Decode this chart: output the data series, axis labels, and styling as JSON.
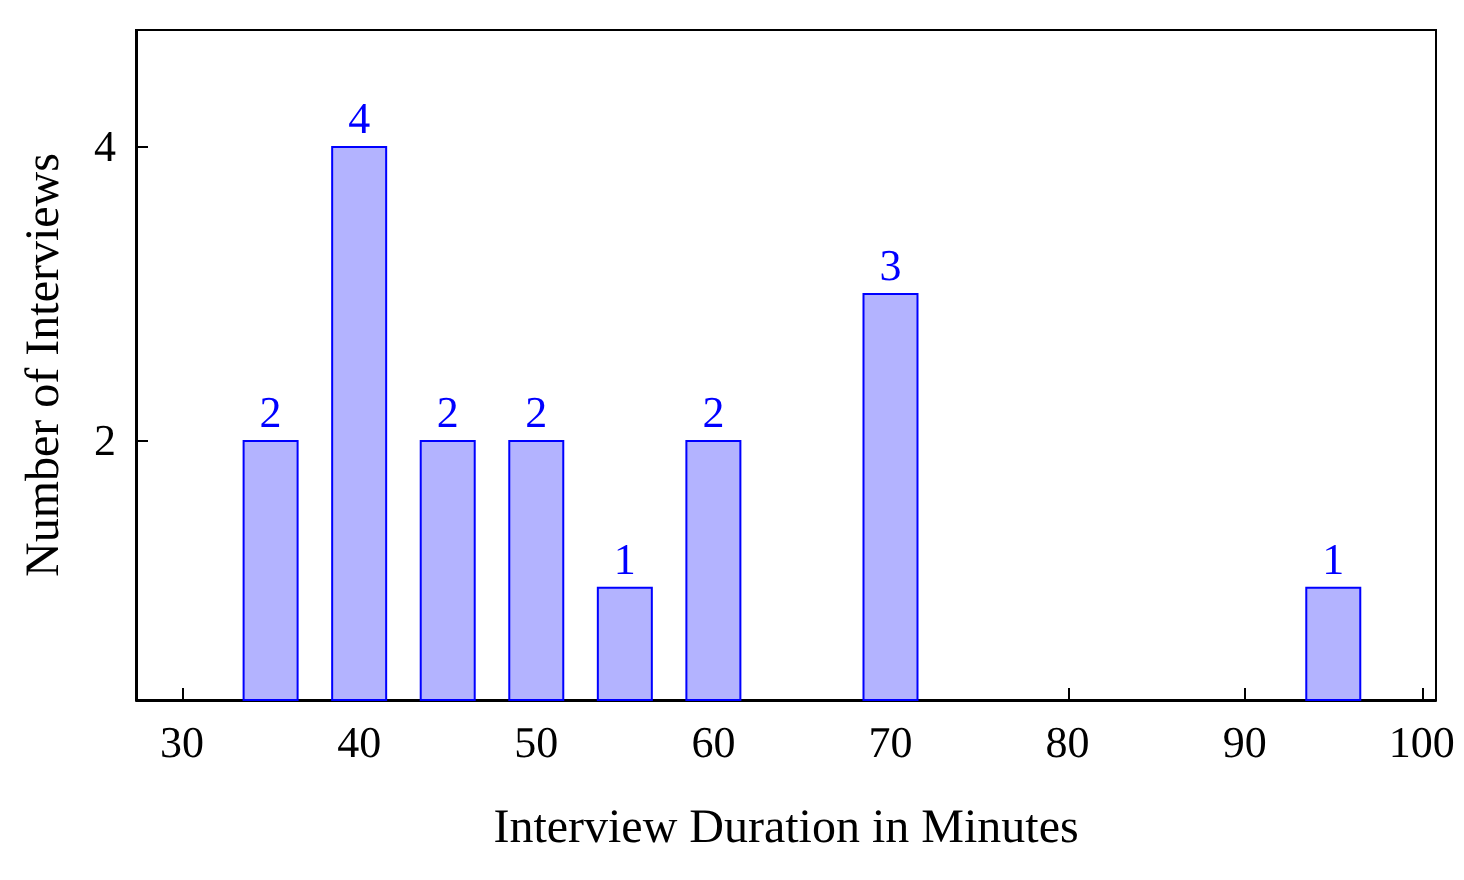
{
  "chart_data": {
    "type": "bar",
    "x": [
      35,
      40,
      45,
      50,
      55,
      60,
      70,
      95
    ],
    "values": [
      2,
      4,
      2,
      2,
      1,
      2,
      3,
      1
    ],
    "color": "#b3b3ff",
    "xlim": [
      27.4,
      100.8
    ],
    "xticks": [
      30,
      40,
      50,
      60,
      70,
      80,
      90,
      100
    ],
    "ylim": [
      0.23,
      4.79
    ],
    "yticks": [
      2,
      4
    ],
    "xlabel": "Interview Duration in Minutes",
    "ylabel": "Number of Interviews",
    "data_labels": true
  }
}
